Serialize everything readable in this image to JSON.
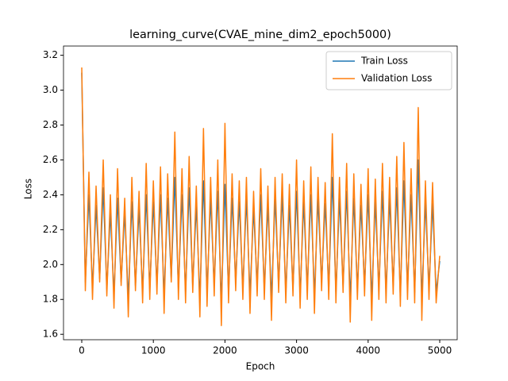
{
  "chart_data": {
    "type": "line",
    "title": "learning_curve(CVAE_mine_dim2_epoch5000)",
    "x_label": "Epoch",
    "y_label": "Loss",
    "x": [
      0,
      50,
      100,
      150,
      200,
      250,
      300,
      350,
      400,
      450,
      500,
      550,
      600,
      650,
      700,
      750,
      800,
      850,
      900,
      950,
      1000,
      1050,
      1100,
      1150,
      1200,
      1250,
      1300,
      1350,
      1400,
      1450,
      1500,
      1550,
      1600,
      1650,
      1700,
      1750,
      1800,
      1850,
      1900,
      1950,
      2000,
      2050,
      2100,
      2150,
      2200,
      2250,
      2300,
      2350,
      2400,
      2450,
      2500,
      2550,
      2600,
      2650,
      2700,
      2750,
      2800,
      2850,
      2900,
      2950,
      3000,
      3050,
      3100,
      3150,
      3200,
      3250,
      3300,
      3350,
      3400,
      3450,
      3500,
      3550,
      3600,
      3650,
      3700,
      3750,
      3800,
      3850,
      3900,
      3950,
      4000,
      4050,
      4100,
      4150,
      4200,
      4250,
      4300,
      4350,
      4400,
      4450,
      4500,
      4550,
      4600,
      4650,
      4700,
      4750,
      4800,
      4850,
      4900,
      4950,
      5000
    ],
    "series": [
      {
        "name": "Train Loss",
        "color": "#1f77b4",
        "values": [
          3.1,
          1.9,
          2.4,
          1.86,
          2.34,
          1.92,
          2.44,
          1.86,
          2.3,
          1.82,
          2.38,
          1.9,
          2.3,
          1.8,
          2.36,
          1.88,
          2.32,
          1.84,
          2.4,
          1.86,
          2.36,
          1.88,
          2.4,
          1.82,
          2.38,
          1.92,
          2.5,
          1.86,
          2.4,
          1.84,
          2.44,
          1.88,
          2.34,
          1.8,
          2.48,
          1.84,
          2.38,
          1.88,
          2.42,
          1.78,
          2.46,
          1.84,
          2.38,
          1.9,
          2.36,
          1.86,
          2.38,
          1.82,
          2.32,
          1.88,
          2.4,
          1.86,
          2.34,
          1.8,
          2.38,
          1.88,
          2.4,
          1.84,
          2.34,
          1.86,
          2.42,
          1.82,
          2.36,
          1.86,
          2.4,
          1.82,
          2.38,
          1.9,
          2.35,
          1.86,
          2.5,
          1.84,
          2.38,
          1.88,
          2.42,
          1.8,
          2.38,
          1.86,
          2.34,
          1.88,
          2.4,
          1.8,
          2.36,
          1.86,
          2.42,
          1.84,
          2.38,
          1.88,
          2.44,
          1.82,
          2.48,
          1.86,
          2.4,
          1.84,
          2.6,
          1.8,
          2.36,
          1.86,
          2.35,
          1.84,
          2.02
        ]
      },
      {
        "name": "Validation Loss",
        "color": "#ff7f0e",
        "values": [
          3.13,
          1.85,
          2.53,
          1.8,
          2.45,
          1.9,
          2.6,
          1.82,
          2.4,
          1.75,
          2.55,
          1.88,
          2.38,
          1.7,
          2.5,
          1.85,
          2.42,
          1.78,
          2.58,
          1.8,
          2.48,
          1.83,
          2.56,
          1.72,
          2.52,
          1.9,
          2.76,
          1.8,
          2.55,
          1.78,
          2.62,
          1.84,
          2.45,
          1.7,
          2.78,
          1.76,
          2.5,
          1.82,
          2.6,
          1.65,
          2.81,
          1.78,
          2.52,
          1.85,
          2.48,
          1.8,
          2.5,
          1.72,
          2.42,
          1.82,
          2.55,
          1.8,
          2.45,
          1.68,
          2.5,
          1.84,
          2.52,
          1.78,
          2.46,
          1.82,
          2.6,
          1.75,
          2.48,
          1.8,
          2.56,
          1.72,
          2.5,
          1.85,
          2.47,
          1.8,
          2.75,
          1.78,
          2.5,
          1.84,
          2.58,
          1.67,
          2.52,
          1.8,
          2.46,
          1.82,
          2.55,
          1.68,
          2.49,
          1.8,
          2.58,
          1.78,
          2.5,
          1.83,
          2.62,
          1.76,
          2.7,
          1.8,
          2.55,
          1.78,
          2.9,
          1.68,
          2.48,
          1.8,
          2.47,
          1.78,
          2.05
        ]
      }
    ],
    "xlim": [
      -255,
      5244
    ],
    "ylim": [
      1.569,
      3.253
    ],
    "xticks": [
      0,
      1000,
      2000,
      3000,
      4000,
      5000
    ],
    "yticks": [
      1.6,
      1.8,
      {
        "value": 2,
        "label": "2.0"
      },
      2.2,
      2.4,
      2.6,
      2.8,
      {
        "value": 3,
        "label": "3.0"
      },
      3.2
    ],
    "legend": "upper right"
  }
}
